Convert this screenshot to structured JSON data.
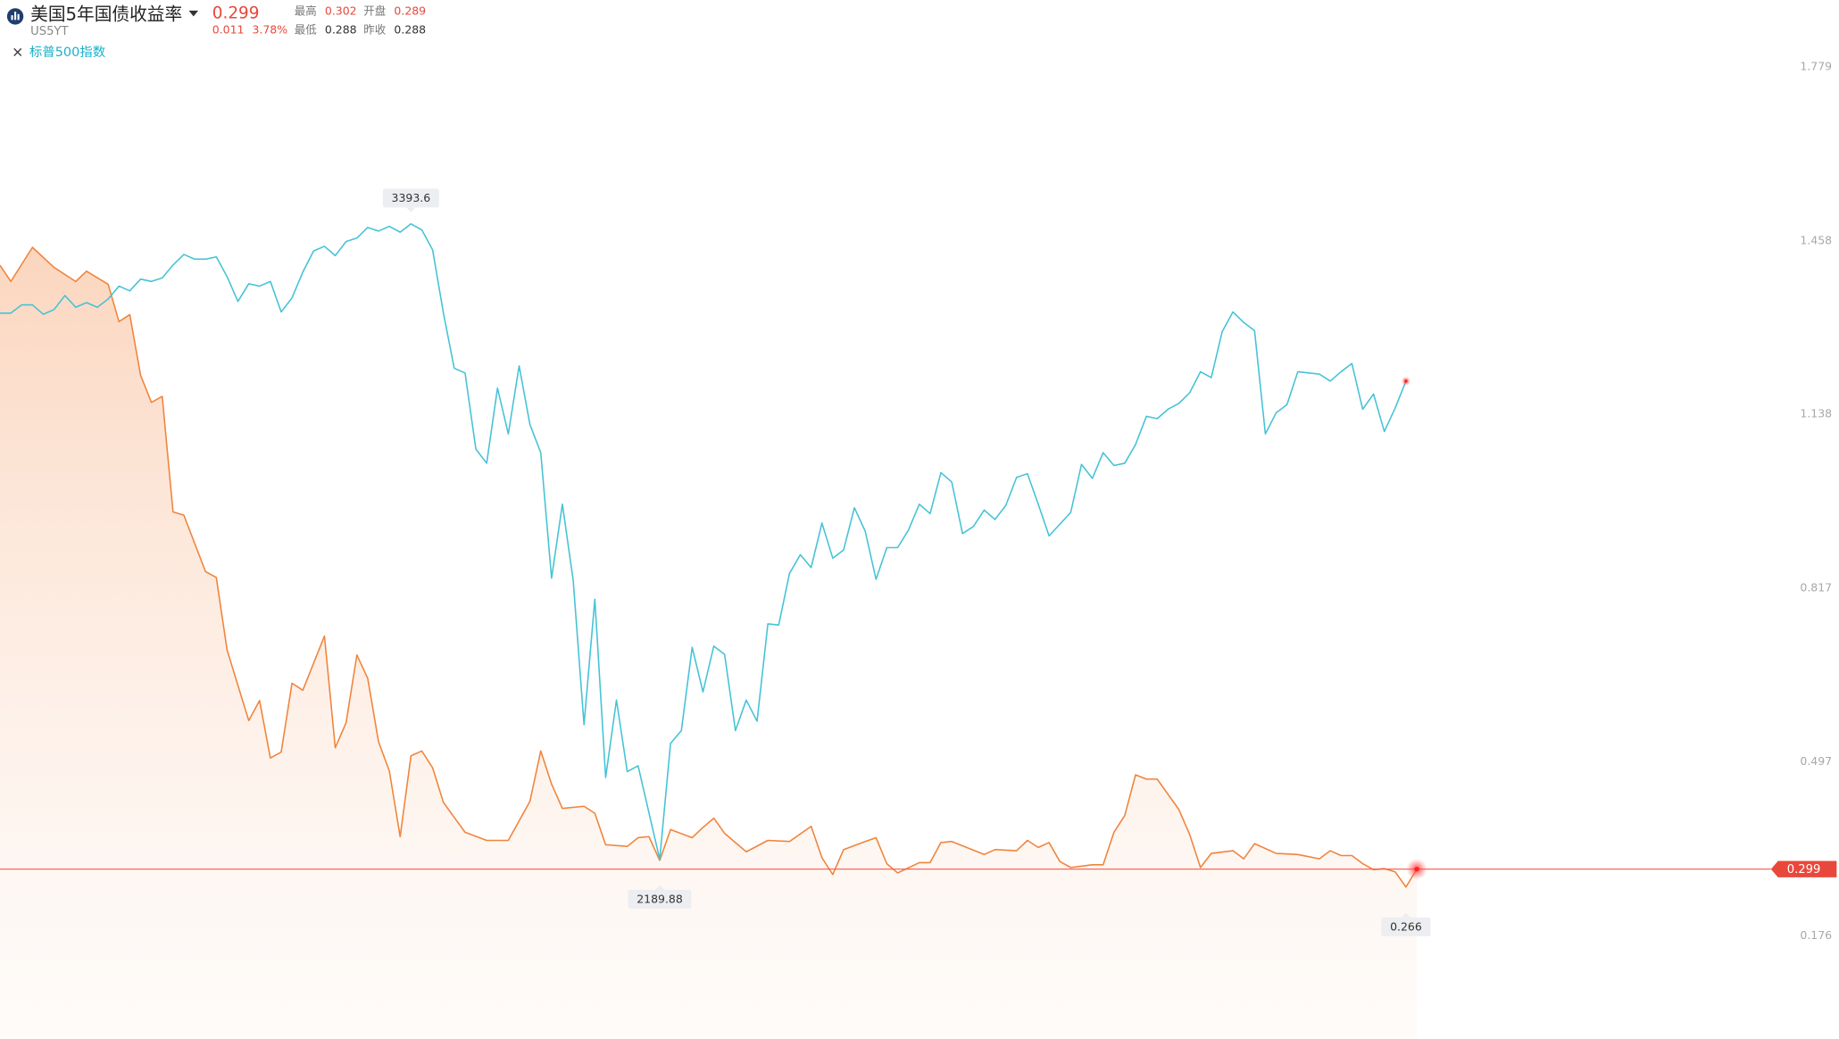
{
  "header": {
    "price": "0.299",
    "change": "0.011",
    "change_pct": "3.78%",
    "symbol": "US5YT",
    "high_label": "最高",
    "high": "0.302",
    "open_label": "开盘",
    "open": "0.289",
    "low_label": "最低",
    "low": "0.288",
    "prev_label": "昨收",
    "prev": "0.288",
    "close_mark": "×"
  },
  "chart_data": {
    "type": "line",
    "ylim": [
      0.176,
      1.779
    ],
    "yticks": [
      1.779,
      1.458,
      1.138,
      0.817,
      0.497,
      0.176
    ],
    "y2lim": [
      2045,
      3691
    ],
    "xlim": [
      0,
      131
    ],
    "series": [
      {
        "name": "美国5年国债收益率",
        "color": "#f0843c",
        "x": [
          0,
          1,
          3,
          5,
          7,
          8,
          10,
          11,
          12,
          13,
          14,
          15,
          16,
          17,
          19,
          20,
          21,
          23,
          24,
          25,
          26,
          27,
          28,
          30,
          31,
          32,
          33,
          34,
          35,
          36,
          37,
          38,
          39,
          40,
          41,
          43,
          45,
          47,
          49,
          50,
          51,
          52,
          54,
          55,
          56,
          58,
          59,
          60,
          61,
          62,
          64,
          65,
          66,
          67,
          69,
          71,
          73,
          75,
          76,
          77,
          78,
          80,
          81,
          82,
          83,
          85,
          86,
          87,
          88,
          91,
          92,
          94,
          95,
          96,
          97,
          98,
          99,
          101,
          102,
          103,
          104,
          105,
          106,
          107,
          109,
          110,
          111,
          112,
          114,
          115,
          116,
          118,
          120,
          122,
          123,
          124,
          125,
          126,
          127,
          128,
          129,
          130,
          131
        ],
        "values": [
          1.413,
          1.383,
          1.446,
          1.409,
          1.383,
          1.402,
          1.378,
          1.309,
          1.322,
          1.21,
          1.16,
          1.171,
          0.958,
          0.952,
          0.848,
          0.837,
          0.703,
          0.573,
          0.61,
          0.504,
          0.515,
          0.642,
          0.629,
          0.729,
          0.523,
          0.569,
          0.694,
          0.651,
          0.534,
          0.48,
          0.359,
          0.508,
          0.517,
          0.486,
          0.422,
          0.367,
          0.352,
          0.352,
          0.424,
          0.517,
          0.456,
          0.411,
          0.415,
          0.402,
          0.344,
          0.341,
          0.357,
          0.359,
          0.315,
          0.372,
          0.357,
          0.376,
          0.393,
          0.365,
          0.331,
          0.352,
          0.35,
          0.378,
          0.32,
          0.289,
          0.335,
          0.35,
          0.357,
          0.309,
          0.292,
          0.311,
          0.311,
          0.348,
          0.35,
          0.326,
          0.335,
          0.333,
          0.352,
          0.339,
          0.348,
          0.313,
          0.302,
          0.307,
          0.307,
          0.367,
          0.398,
          0.473,
          0.465,
          0.465,
          0.409,
          0.363,
          0.302,
          0.328,
          0.333,
          0.318,
          0.346,
          0.328,
          0.326,
          0.318,
          0.333,
          0.324,
          0.324,
          0.309,
          0.298,
          0.3,
          0.294,
          0.266,
          0.299
        ]
      },
      {
        "name": "标普500指数",
        "color": "#45c3d6",
        "axis": "y2",
        "x": [
          0,
          1,
          2,
          3,
          4,
          5,
          6,
          7,
          8,
          9,
          10,
          11,
          12,
          13,
          14,
          15,
          16,
          17,
          18,
          19,
          20,
          21,
          22,
          23,
          24,
          25,
          26,
          27,
          28,
          29,
          30,
          31,
          32,
          33,
          34,
          35,
          36,
          37,
          38,
          39,
          40,
          41,
          42,
          43,
          44,
          45,
          46,
          47,
          48,
          49,
          50,
          51,
          52,
          53,
          54,
          55,
          56,
          57,
          58,
          59,
          61,
          62,
          63,
          64,
          65,
          66,
          67,
          68,
          69,
          70,
          71,
          72,
          73,
          74,
          75,
          76,
          77,
          78,
          79,
          80,
          81,
          82,
          83,
          84,
          85,
          86,
          87,
          88,
          89,
          90,
          91,
          92,
          93,
          94,
          95,
          96,
          97,
          98,
          99,
          100,
          101,
          102,
          103,
          104,
          105,
          106,
          107,
          108,
          109,
          110,
          111,
          112,
          113,
          114,
          115,
          116,
          117,
          118,
          119,
          120,
          121,
          122,
          123,
          124,
          125,
          126,
          127,
          128,
          129,
          130
        ],
        "values": [
          3224.5,
          3224.5,
          3240.1,
          3240.1,
          3222.3,
          3231.2,
          3257.8,
          3235.6,
          3244.5,
          3235.6,
          3251.2,
          3275.6,
          3266.7,
          3288.9,
          3284.5,
          3291.2,
          3315.6,
          3335.6,
          3326.7,
          3326.7,
          3331.1,
          3293.4,
          3246.7,
          3280.1,
          3275.6,
          3284.5,
          3226.7,
          3253.4,
          3302.3,
          3342.3,
          3351.1,
          3333.4,
          3360.0,
          3366.7,
          3386.7,
          3380.0,
          3388.9,
          3377.8,
          3393.6,
          3382.2,
          3344.5,
          3224.5,
          3120.1,
          3111.2,
          2966.9,
          2940.2,
          3082.4,
          2995.7,
          3124.6,
          3013.5,
          2960.2,
          2722.5,
          2862.5,
          2718.1,
          2444.9,
          2682.5,
          2344.9,
          2491.5,
          2356.0,
          2367.1,
          2189.88,
          2409.3,
          2433.7,
          2591.5,
          2507.0,
          2593.7,
          2578.1,
          2433.7,
          2491.5,
          2451.5,
          2635.9,
          2633.7,
          2731.4,
          2766.9,
          2742.5,
          2826.9,
          2760.3,
          2775.8,
          2855.8,
          2811.4,
          2720.3,
          2780.3,
          2780.3,
          2813.6,
          2862.5,
          2844.7,
          2922.4,
          2904.7,
          2806.9,
          2820.3,
          2851.4,
          2833.6,
          2860.2,
          2913.5,
          2920.2,
          2862.5,
          2802.5,
          2824.7,
          2846.9,
          2938.0,
          2911.3,
          2960.2,
          2935.8,
          2940.2,
          2975.7,
          3029.1,
          3024.6,
          3042.4,
          3053.5,
          3073.5,
          3113.5,
          3102.4,
          3189.0,
          3226.7,
          3206.8,
          3191.2,
          2995.7,
          3035.7,
          3051.3,
          3113.5,
          3111.2,
          3109.0,
          3095.7,
          3113.5,
          3129.0,
          3042.4,
          3071.3,
          3000.2,
          3044.6,
          3095.7
        ]
      }
    ]
  }
}
